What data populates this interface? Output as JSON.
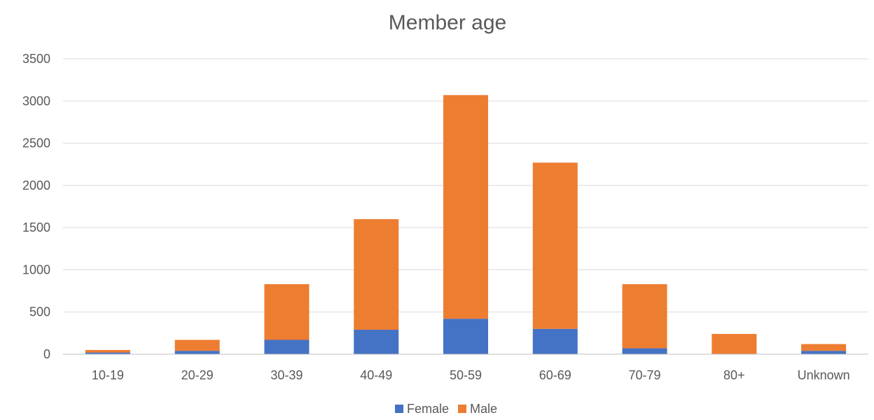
{
  "chart_data": {
    "type": "bar",
    "stacked": true,
    "title": "Member age",
    "xlabel": "",
    "ylabel": "",
    "categories": [
      "10-19",
      "20-29",
      "30-39",
      "40-49",
      "50-59",
      "60-69",
      "70-79",
      "80+",
      "Unknown"
    ],
    "series": [
      {
        "name": "Female",
        "color": "#4472C4",
        "values": [
          20,
          40,
          170,
          290,
          420,
          300,
          70,
          5,
          40
        ]
      },
      {
        "name": "Male",
        "color": "#ED7D31",
        "values": [
          30,
          130,
          660,
          1310,
          2650,
          1970,
          760,
          235,
          80
        ]
      }
    ],
    "ylim": [
      0,
      3500
    ],
    "yticks": [
      0,
      500,
      1000,
      1500,
      2000,
      2500,
      3000,
      3500
    ],
    "grid": true,
    "legend_position": "bottom"
  }
}
